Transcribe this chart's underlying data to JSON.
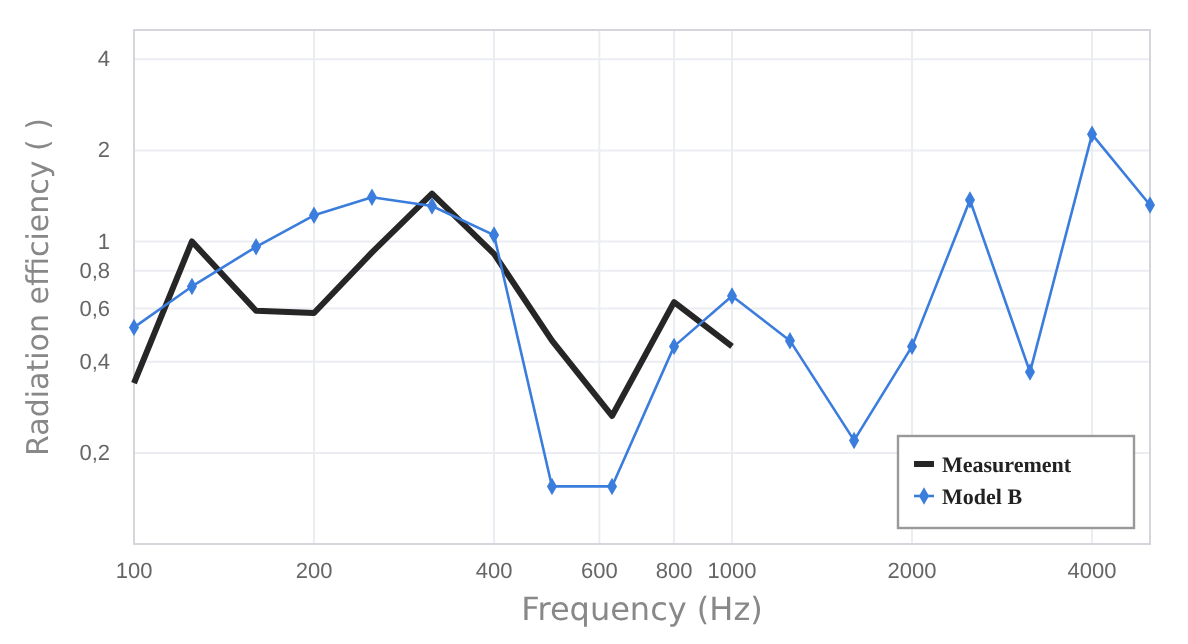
{
  "chart_data": {
    "type": "line",
    "xlabel": "Frequency (Hz)",
    "ylabel": "Radiation efficiency ( )",
    "log": "xy",
    "xlim": [
      100,
      5000
    ],
    "xticks": [
      100,
      200,
      400,
      600,
      800,
      1000,
      2000,
      4000
    ],
    "ylim": [
      0.1,
      5
    ],
    "yticks": [
      {
        "value": 0.2,
        "label": "0,2"
      },
      {
        "value": 0.4,
        "label": "0,4"
      },
      {
        "value": 0.6,
        "label": "0,6"
      },
      {
        "value": 0.8,
        "label": "0,8"
      },
      1,
      2,
      4
    ],
    "grid": true,
    "legend": "bottom right",
    "series": [
      {
        "name": "Measurement",
        "color": "#262626",
        "marker": "none",
        "x": [
          100,
          125,
          160,
          200,
          250,
          315,
          400,
          500,
          630,
          800,
          1000
        ],
        "values": [
          0.34,
          1.0,
          0.59,
          0.58,
          0.92,
          1.44,
          0.91,
          0.47,
          0.265,
          0.63,
          0.45
        ]
      },
      {
        "name": "Model B",
        "color": "#3b7ddd",
        "marker": "diamond",
        "x": [
          100,
          125,
          160,
          200,
          250,
          315,
          400,
          500,
          630,
          800,
          1000,
          1250,
          1600,
          2000,
          2500,
          3150,
          4000,
          5000
        ],
        "values": [
          0.52,
          0.71,
          0.96,
          1.22,
          1.4,
          1.31,
          1.05,
          0.155,
          0.155,
          0.45,
          0.66,
          0.47,
          0.22,
          0.45,
          1.37,
          0.37,
          2.26,
          1.32
        ]
      }
    ]
  }
}
